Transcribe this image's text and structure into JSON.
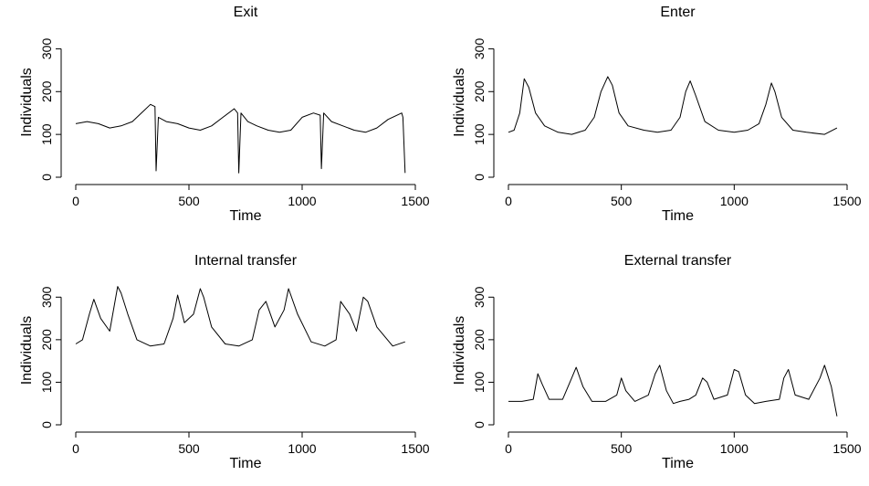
{
  "chart_data": [
    {
      "type": "line",
      "title": "Exit",
      "xlabel": "Time",
      "ylabel": "Individuals",
      "xlim": [
        0,
        1500
      ],
      "ylim": [
        0,
        350
      ],
      "x_ticks": [
        "0",
        "500",
        "1000",
        "1500"
      ],
      "y_ticks": [
        "0",
        "100",
        "200",
        "300"
      ],
      "grid": false,
      "series": [
        {
          "x": [
            0,
            50,
            100,
            150,
            200,
            250,
            300,
            330,
            350,
            355,
            365,
            400,
            450,
            500,
            550,
            600,
            650,
            700,
            715,
            720,
            730,
            760,
            800,
            850,
            900,
            950,
            1000,
            1050,
            1080,
            1085,
            1095,
            1130,
            1180,
            1230,
            1280,
            1330,
            1380,
            1440,
            1445,
            1455
          ],
          "y": [
            125,
            130,
            125,
            115,
            120,
            130,
            155,
            170,
            165,
            15,
            140,
            130,
            125,
            115,
            110,
            120,
            140,
            160,
            150,
            10,
            150,
            130,
            120,
            110,
            105,
            110,
            140,
            150,
            145,
            20,
            150,
            130,
            120,
            110,
            105,
            115,
            135,
            150,
            140,
            10
          ]
        }
      ]
    },
    {
      "type": "line",
      "title": "Enter",
      "xlabel": "Time",
      "ylabel": "Individuals",
      "xlim": [
        0,
        1500
      ],
      "ylim": [
        0,
        350
      ],
      "x_ticks": [
        "0",
        "500",
        "1000",
        "1500"
      ],
      "y_ticks": [
        "0",
        "100",
        "200",
        "300"
      ],
      "grid": false,
      "series": [
        {
          "x": [
            0,
            25,
            50,
            70,
            90,
            120,
            160,
            220,
            280,
            340,
            380,
            410,
            440,
            460,
            490,
            530,
            600,
            660,
            720,
            760,
            785,
            805,
            830,
            870,
            930,
            1000,
            1060,
            1110,
            1140,
            1165,
            1180,
            1210,
            1260,
            1320,
            1400,
            1455
          ],
          "y": [
            105,
            110,
            150,
            230,
            210,
            150,
            120,
            105,
            100,
            110,
            140,
            200,
            235,
            215,
            150,
            120,
            110,
            105,
            110,
            140,
            200,
            225,
            190,
            130,
            110,
            105,
            110,
            125,
            170,
            220,
            200,
            140,
            110,
            105,
            100,
            115
          ]
        }
      ]
    },
    {
      "type": "line",
      "title": "Internal transfer",
      "xlabel": "Time",
      "ylabel": "Individuals",
      "xlim": [
        0,
        1500
      ],
      "ylim": [
        0,
        350
      ],
      "x_ticks": [
        "0",
        "500",
        "1000",
        "1500"
      ],
      "y_ticks": [
        "0",
        "100",
        "200",
        "300"
      ],
      "grid": false,
      "series": [
        {
          "x": [
            0,
            30,
            60,
            80,
            110,
            150,
            185,
            200,
            230,
            270,
            330,
            390,
            430,
            450,
            480,
            520,
            550,
            565,
            600,
            660,
            720,
            780,
            810,
            840,
            880,
            920,
            940,
            980,
            1040,
            1100,
            1150,
            1170,
            1210,
            1240,
            1270,
            1290,
            1330,
            1400,
            1455
          ],
          "y": [
            190,
            200,
            260,
            295,
            250,
            220,
            325,
            310,
            260,
            200,
            185,
            190,
            250,
            305,
            240,
            260,
            320,
            300,
            230,
            190,
            185,
            200,
            270,
            290,
            230,
            270,
            320,
            260,
            195,
            185,
            200,
            290,
            260,
            220,
            300,
            290,
            230,
            185,
            195
          ]
        }
      ]
    },
    {
      "type": "line",
      "title": "External transfer",
      "xlabel": "Time",
      "ylabel": "Individuals",
      "xlim": [
        0,
        1500
      ],
      "ylim": [
        0,
        350
      ],
      "x_ticks": [
        "0",
        "500",
        "1000",
        "1500"
      ],
      "y_ticks": [
        "0",
        "100",
        "200",
        "300"
      ],
      "grid": false,
      "series": [
        {
          "x": [
            0,
            60,
            110,
            130,
            150,
            180,
            240,
            280,
            300,
            330,
            370,
            430,
            480,
            500,
            520,
            560,
            620,
            650,
            670,
            700,
            730,
            760,
            800,
            830,
            860,
            880,
            910,
            970,
            1000,
            1020,
            1050,
            1090,
            1140,
            1200,
            1220,
            1240,
            1270,
            1330,
            1380,
            1400,
            1430,
            1455
          ],
          "y": [
            55,
            55,
            60,
            120,
            95,
            60,
            60,
            110,
            135,
            90,
            55,
            55,
            70,
            110,
            80,
            55,
            70,
            120,
            140,
            80,
            50,
            55,
            60,
            70,
            110,
            100,
            60,
            70,
            130,
            125,
            70,
            50,
            55,
            60,
            110,
            130,
            70,
            60,
            110,
            140,
            90,
            20
          ]
        }
      ]
    }
  ]
}
